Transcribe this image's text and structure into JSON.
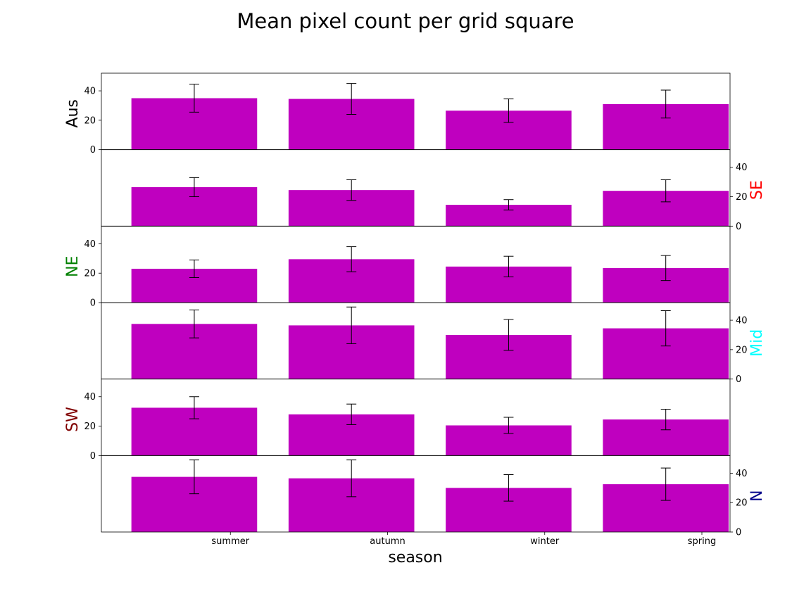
{
  "chart_data": {
    "type": "bar",
    "title": "Mean pixel count per grid square",
    "xlabel": "season",
    "categories": [
      "summer",
      "autumn",
      "winter",
      "spring"
    ],
    "ylim": [
      0,
      52
    ],
    "yticks": [
      0,
      20,
      40
    ],
    "bar_color": "#bf00bf",
    "error_bar_color": "#000000",
    "series": [
      {
        "name": "Aus",
        "label_color": "#000000",
        "axis_side": "left",
        "values": [
          35,
          34.5,
          26.5,
          31
        ],
        "errors": [
          9.5,
          10.5,
          8,
          9.5
        ]
      },
      {
        "name": "SE",
        "label_color": "#ff0000",
        "axis_side": "right",
        "values": [
          26.5,
          24.5,
          14.5,
          24
        ],
        "errors": [
          6.5,
          7,
          3.5,
          7.5
        ]
      },
      {
        "name": "NE",
        "label_color": "#008000",
        "axis_side": "left",
        "values": [
          23,
          29.5,
          24.5,
          23.5
        ],
        "errors": [
          6,
          8.5,
          7,
          8.5
        ]
      },
      {
        "name": "Mid",
        "label_color": "#00ffff",
        "axis_side": "right",
        "values": [
          37.5,
          36.5,
          30,
          34.5
        ],
        "errors": [
          9.5,
          12.5,
          10.5,
          12
        ]
      },
      {
        "name": "SW",
        "label_color": "#800000",
        "axis_side": "left",
        "values": [
          32.5,
          28,
          20.5,
          24.5
        ],
        "errors": [
          7.5,
          7,
          5.5,
          7
        ]
      },
      {
        "name": "N",
        "label_color": "#00008b",
        "axis_side": "right",
        "values": [
          37.5,
          36.5,
          30,
          32.5
        ],
        "errors": [
          11.5,
          12.5,
          9,
          11
        ]
      }
    ]
  }
}
